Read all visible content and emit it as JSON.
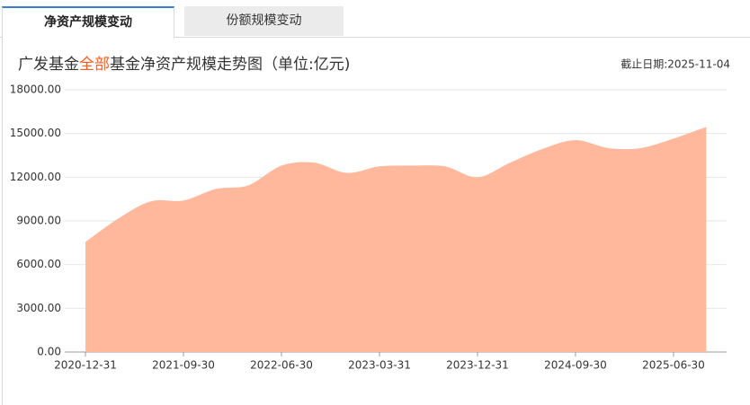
{
  "tabs": [
    "净资产规模变动",
    "份额规模变动"
  ],
  "chart_data": {
    "type": "area",
    "title": {
      "prefix": "广发基金",
      "highlight": "全部",
      "suffix": "基金净资产规模走势图（单位:亿元)"
    },
    "as_of": "截止日期:2025-11-04",
    "categories": [
      "2020-12-31",
      null,
      null,
      "2021-09-30",
      null,
      null,
      "2022-06-30",
      null,
      null,
      "2023-03-31",
      null,
      null,
      "2023-12-31",
      null,
      null,
      "2024-09-30",
      null,
      null,
      "2025-06-30",
      null
    ],
    "series": [
      {
        "name": "净资产规模",
        "color": "#ffb89c",
        "values": [
          7500,
          9100,
          10300,
          10350,
          11150,
          11400,
          12750,
          12950,
          12250,
          12700,
          12750,
          12700,
          11950,
          12950,
          13900,
          14500,
          13950,
          13950,
          14600,
          15400
        ]
      }
    ],
    "ylim": [
      0,
      18000
    ],
    "yticks": [
      {
        "value": 0,
        "label": "0.00"
      },
      {
        "value": 3000,
        "label": "3000.00"
      },
      {
        "value": 6000,
        "label": "6000.00"
      },
      {
        "value": 9000,
        "label": "9000.00"
      },
      {
        "value": 12000,
        "label": "12000.00"
      },
      {
        "value": 15000,
        "label": "15000.00"
      },
      {
        "value": 18000,
        "label": "18000.00"
      }
    ],
    "grid": true
  }
}
